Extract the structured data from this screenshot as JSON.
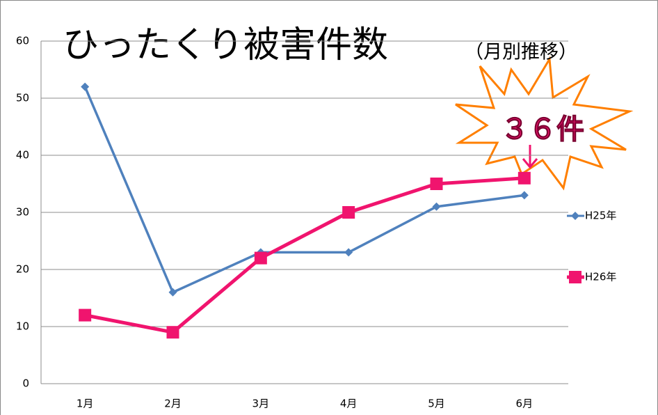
{
  "chart_data": {
    "type": "line",
    "title": "ひったくり被害件数",
    "subtitle": "（月別推移）",
    "annotation": "３６件",
    "categories": [
      "1月",
      "2月",
      "3月",
      "4月",
      "5月",
      "6月"
    ],
    "series": [
      {
        "name": "H25年",
        "color": "#4f81bd",
        "marker": "diamond",
        "values": [
          52,
          16,
          23,
          23,
          31,
          33
        ]
      },
      {
        "name": "H26年",
        "color": "#f0146e",
        "marker": "square",
        "values": [
          12,
          9,
          22,
          30,
          35,
          36
        ]
      }
    ],
    "ylim": [
      0,
      60
    ],
    "yticks": [
      0,
      10,
      20,
      30,
      40,
      50,
      60
    ],
    "grid": true,
    "legend": "right"
  }
}
